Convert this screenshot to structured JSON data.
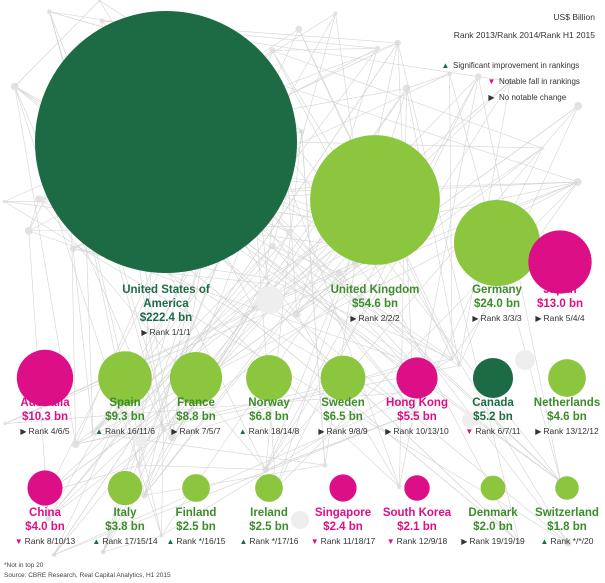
{
  "header": {
    "unit": "US$ Billion",
    "rank_key": "Rank 2013/Rank 2014/Rank H1 2015"
  },
  "legend": {
    "up": "Significant improvement in rankings",
    "down": "Notable fall in rankings",
    "flat": "No notable change"
  },
  "colors": {
    "dark_green": "#1d6b45",
    "light_green": "#8cc63f",
    "magenta": "#dc0f86",
    "up_marker": "#1d6b45",
    "down_marker": "#dc0f86",
    "flat_marker": "#333333",
    "label_text": "#3d8c2c"
  },
  "chart_data": {
    "type": "bubble",
    "unit": "US$ Billion",
    "items": [
      {
        "country": "United States of America",
        "value": 222.4,
        "value_label": "$222.4 bn",
        "rank": "Rank 1/1/1",
        "trend": "flat",
        "color": "dark_green"
      },
      {
        "country": "United Kingdom",
        "value": 54.6,
        "value_label": "$54.6 bn",
        "rank": "Rank 2/2/2",
        "trend": "flat",
        "color": "light_green"
      },
      {
        "country": "Germany",
        "value": 24.0,
        "value_label": "$24.0 bn",
        "rank": "Rank 3/3/3",
        "trend": "flat",
        "color": "light_green"
      },
      {
        "country": "Japan",
        "value": 13.0,
        "value_label": "$13.0 bn",
        "rank": "Rank 5/4/4",
        "trend": "flat",
        "color": "magenta"
      },
      {
        "country": "Australia",
        "value": 10.3,
        "value_label": "$10.3 bn",
        "rank": "Rank 4/6/5",
        "trend": "flat",
        "color": "magenta"
      },
      {
        "country": "Spain",
        "value": 9.3,
        "value_label": "$9.3 bn",
        "rank": "Rank 16/11/6",
        "trend": "up",
        "color": "light_green"
      },
      {
        "country": "France",
        "value": 8.8,
        "value_label": "$8.8 bn",
        "rank": "Rank 7/5/7",
        "trend": "flat",
        "color": "light_green"
      },
      {
        "country": "Norway",
        "value": 6.8,
        "value_label": "$6.8 bn",
        "rank": "Rank 18/14/8",
        "trend": "up",
        "color": "light_green"
      },
      {
        "country": "Sweden",
        "value": 6.5,
        "value_label": "$6.5 bn",
        "rank": "Rank 9/8/9",
        "trend": "flat",
        "color": "light_green"
      },
      {
        "country": "Hong Kong",
        "value": 5.5,
        "value_label": "$5.5 bn",
        "rank": "Rank 10/13/10",
        "trend": "flat",
        "color": "magenta"
      },
      {
        "country": "Canada",
        "value": 5.2,
        "value_label": "$5.2 bn",
        "rank": "Rank 6/7/11",
        "trend": "down",
        "color": "dark_green"
      },
      {
        "country": "Netherlands",
        "value": 4.6,
        "value_label": "$4.6 bn",
        "rank": "Rank 13/12/12",
        "trend": "flat",
        "color": "light_green"
      },
      {
        "country": "China",
        "value": 4.0,
        "value_label": "$4.0 bn",
        "rank": "Rank 8/10/13",
        "trend": "down",
        "color": "magenta"
      },
      {
        "country": "Italy",
        "value": 3.8,
        "value_label": "$3.8 bn",
        "rank": "Rank 17/15/14",
        "trend": "up",
        "color": "light_green"
      },
      {
        "country": "Finland",
        "value": 2.5,
        "value_label": "$2.5 bn",
        "rank": "Rank */16/15",
        "trend": "up",
        "color": "light_green"
      },
      {
        "country": "Ireland",
        "value": 2.5,
        "value_label": "$2.5 bn",
        "rank": "Rank */17/16",
        "trend": "up",
        "color": "light_green"
      },
      {
        "country": "Singapore",
        "value": 2.4,
        "value_label": "$2.4 bn",
        "rank": "Rank 11/18/17",
        "trend": "down",
        "color": "magenta"
      },
      {
        "country": "South Korea",
        "value": 2.1,
        "value_label": "$2.1 bn",
        "rank": "Rank 12/9/18",
        "trend": "down",
        "color": "magenta"
      },
      {
        "country": "Denmark",
        "value": 2.0,
        "value_label": "$2.0 bn",
        "rank": "Rank 19/19/19",
        "trend": "flat",
        "color": "light_green"
      },
      {
        "country": "Switzerland",
        "value": 1.8,
        "value_label": "$1.8 bn",
        "rank": "Rank */*/20",
        "trend": "up",
        "color": "light_green"
      }
    ]
  },
  "footnotes": {
    "note": "*Not in top 20",
    "source": "Source: CBRE Research, Real Capital Analytics, H1 2015"
  }
}
